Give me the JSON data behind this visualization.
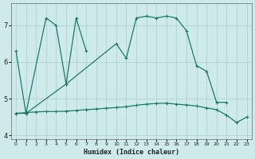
{
  "xlabel": "Humidex (Indice chaleur)",
  "line1_x": [
    0,
    1,
    3,
    4,
    5,
    6,
    7
  ],
  "line1_y": [
    6.3,
    4.6,
    7.2,
    7.0,
    5.4,
    7.2,
    6.3
  ],
  "line2_x": [
    0,
    1,
    5,
    10,
    11,
    12,
    13,
    14,
    15,
    16,
    17,
    18,
    19,
    20,
    21
  ],
  "line2_y": [
    4.6,
    4.6,
    5.4,
    6.5,
    6.1,
    7.2,
    7.25,
    7.2,
    7.25,
    7.2,
    6.85,
    5.9,
    5.75,
    4.9,
    4.9
  ],
  "line3_x": [
    0,
    1,
    2,
    3,
    4,
    5,
    6,
    7,
    8,
    9,
    10,
    11,
    12,
    13,
    14,
    15,
    16,
    17,
    18,
    19,
    20,
    21,
    22,
    23
  ],
  "line3_y": [
    4.6,
    4.62,
    4.64,
    4.65,
    4.65,
    4.66,
    4.68,
    4.7,
    4.72,
    4.74,
    4.76,
    4.78,
    4.82,
    4.85,
    4.87,
    4.88,
    4.85,
    4.83,
    4.8,
    4.75,
    4.7,
    4.55,
    4.35,
    4.5
  ],
  "ylim": [
    3.9,
    7.6
  ],
  "yticks": [
    4,
    5,
    6,
    7
  ],
  "xticks": [
    0,
    1,
    2,
    3,
    4,
    5,
    6,
    7,
    8,
    9,
    10,
    11,
    12,
    13,
    14,
    15,
    16,
    17,
    18,
    19,
    20,
    21,
    22,
    23
  ],
  "line_color": "#1a7a6e",
  "bg_color": "#ceeaea",
  "grid_color": "#aacece"
}
